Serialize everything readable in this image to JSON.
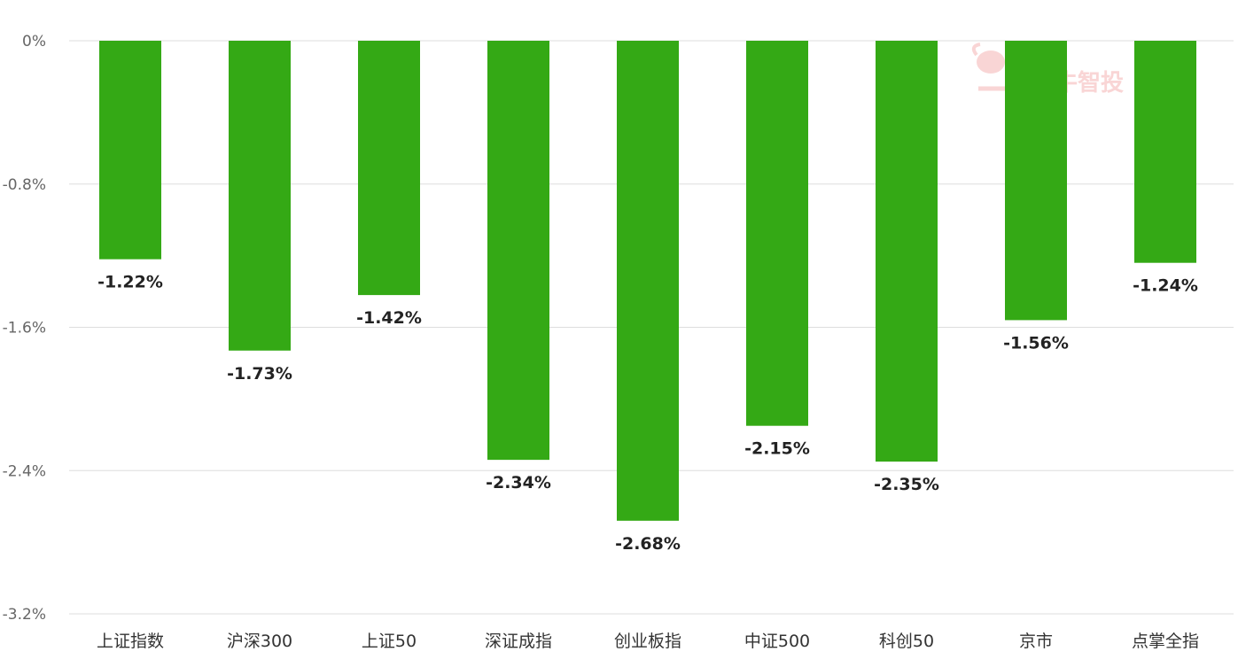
{
  "chart_data": {
    "type": "bar",
    "categories": [
      "上证指数",
      "沪深300",
      "上证50",
      "深证成指",
      "创业板指",
      "中证500",
      "科创50",
      "京市",
      "点掌全指"
    ],
    "values": [
      -1.22,
      -1.73,
      -1.42,
      -2.34,
      -2.68,
      -2.15,
      -2.35,
      -1.56,
      -1.24
    ],
    "data_labels": [
      "-1.22%",
      "-1.73%",
      "-1.42%",
      "-2.34%",
      "-2.68%",
      "-2.15%",
      "-2.35%",
      "-1.56%",
      "-1.24%"
    ],
    "y_ticks": [
      0,
      -0.8,
      -1.6,
      -2.4,
      -3.2
    ],
    "y_tick_labels": [
      "0%",
      "-0.8%",
      "-1.6%",
      "-2.4%",
      "-3.2%"
    ],
    "ylim": [
      -3.2,
      0
    ],
    "grid": true,
    "title": "",
    "xlabel": "",
    "ylabel": ""
  },
  "colors": {
    "bar": "#34a915",
    "grid": "#dddddd"
  },
  "watermark": {
    "text": "牛智投",
    "icon": "bull-logo-icon"
  }
}
